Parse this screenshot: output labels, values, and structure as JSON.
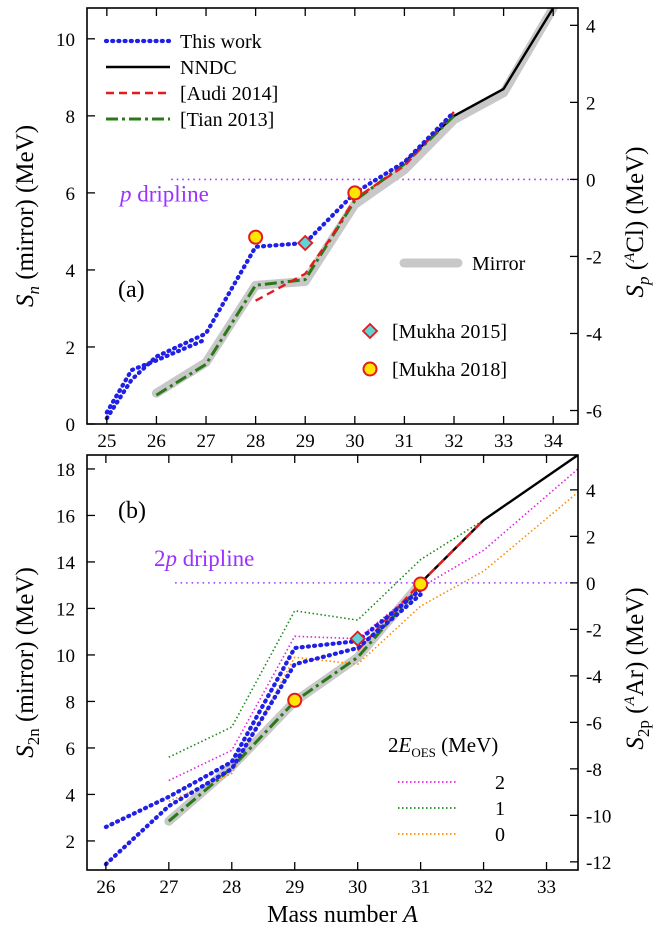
{
  "chart_data": [
    {
      "type": "line",
      "panel_label": "(a)",
      "xlabel": "",
      "ylabel": "S_n (mirror) (MeV)",
      "ylabel_right": "S_p (^A Cl) (MeV)",
      "xlim": [
        24.6,
        34.5
      ],
      "ylim": [
        0,
        10.8
      ],
      "ylim_right": [
        -6.35,
        4.45
      ],
      "x_ticks": [
        "25",
        "26",
        "27",
        "28",
        "29",
        "30",
        "31",
        "32",
        "33",
        "34"
      ],
      "y_ticks": [
        "0",
        "2",
        "4",
        "6",
        "8",
        "10"
      ],
      "y_ticks_right": [
        "-6",
        "-4",
        "-2",
        "0",
        "2",
        "4"
      ],
      "dripline": {
        "label": "p dripline",
        "y_right": 0,
        "x_start": 26.3,
        "color": "#9b30ff"
      },
      "legend": {
        "position": "top-left",
        "entries": [
          {
            "name": "This work",
            "color": "#1f1fe8",
            "style": "dotted"
          },
          {
            "name": "NNDC",
            "color": "#000000",
            "style": "solid"
          },
          {
            "name": "[Audi 2014]",
            "color": "#e41a1c",
            "style": "dashed"
          },
          {
            "name": "[Tian 2013]",
            "color": "#2a7a18",
            "style": "dashdot"
          }
        ]
      },
      "mirror_legend": {
        "name": "Mirror",
        "color": "#c8c8c8"
      },
      "marker_legend": [
        {
          "name": "[Mukha 2015]",
          "marker": "diamond"
        },
        {
          "name": "[Mukha 2018]",
          "marker": "circle"
        }
      ],
      "series": [
        {
          "name": "Mirror",
          "color": "#c8c8c8",
          "style": "band",
          "x": [
            26,
            27,
            28,
            29,
            30,
            31,
            32,
            33,
            34
          ],
          "y": [
            0.8,
            1.6,
            3.6,
            3.7,
            5.7,
            6.6,
            7.9,
            8.6,
            10.8
          ]
        },
        {
          "name": "NNDC",
          "color": "#000000",
          "style": "solid",
          "x": [
            31,
            32,
            33,
            34
          ],
          "y": [
            6.8,
            8.0,
            8.7,
            10.8
          ]
        },
        {
          "name": "[Tian 2013]",
          "color": "#2a7a18",
          "style": "dashdot",
          "x": [
            26,
            27,
            28,
            29,
            30,
            31,
            32
          ],
          "y": [
            0.75,
            1.55,
            3.6,
            3.75,
            5.8,
            6.75,
            8.0
          ]
        },
        {
          "name": "[Audi 2014]",
          "color": "#e41a1c",
          "style": "dashed",
          "x": [
            28,
            29,
            29.5,
            30,
            31,
            32
          ],
          "y": [
            3.2,
            3.9,
            4.8,
            5.85,
            6.7,
            8.1
          ]
        },
        {
          "name": "This work",
          "color": "#1f1fe8",
          "style": "dotted",
          "x": [
            25,
            25.5,
            26,
            27,
            28,
            29,
            30,
            31,
            32
          ],
          "y": [
            0.15,
            1.15,
            1.75,
            2.35,
            4.6,
            4.7,
            6.0,
            6.8,
            8.1
          ]
        },
        {
          "name": "This work",
          "color": "#1f1fe8",
          "style": "dotted",
          "x": [
            25,
            25.5,
            26,
            27
          ],
          "y": [
            0.3,
            1.4,
            1.65,
            2.2
          ]
        }
      ],
      "points": [
        {
          "name": "[Mukha 2015]",
          "marker": "diamond",
          "x": 29,
          "y": 4.7
        },
        {
          "name": "[Mukha 2018]",
          "marker": "circle",
          "x": 28,
          "y": 4.85
        },
        {
          "name": "[Mukha 2018]",
          "marker": "circle",
          "x": 30,
          "y": 6.0
        }
      ]
    },
    {
      "type": "line",
      "panel_label": "(b)",
      "xlabel": "Mass number A",
      "ylabel": "S_2n (mirror) (MeV)",
      "ylabel_right": "S_2p (^A Ar) (MeV)",
      "xlim": [
        25.7,
        33.5
      ],
      "ylim": [
        0.75,
        18.6
      ],
      "ylim_right": [
        -12.35,
        5.5
      ],
      "x_ticks": [
        "26",
        "27",
        "28",
        "29",
        "30",
        "31",
        "32",
        "33"
      ],
      "y_ticks": [
        "2",
        "4",
        "6",
        "8",
        "10",
        "12",
        "14",
        "16",
        "18"
      ],
      "y_ticks_right": [
        "-12",
        "-10",
        "-8",
        "-6",
        "-4",
        "-2",
        "0",
        "2",
        "4"
      ],
      "dripline": {
        "label": "2p dripline",
        "y_right": 0,
        "x_start": 27.1,
        "color": "#9b30ff"
      },
      "oes_legend": {
        "title": "2E_OES (MeV)",
        "entries": [
          {
            "name": "2",
            "color": "#e020e0"
          },
          {
            "name": "1",
            "color": "#1c8a1c"
          },
          {
            "name": "0",
            "color": "#ff8c00"
          }
        ]
      },
      "series": [
        {
          "name": "Mirror",
          "color": "#c8c8c8",
          "style": "band",
          "x": [
            27,
            28,
            29,
            30,
            31
          ],
          "y": [
            2.85,
            5.2,
            8.0,
            9.9,
            13.1
          ]
        },
        {
          "name": "2",
          "color": "#e020e0",
          "style": "dotted-thin",
          "x": [
            27,
            28,
            29,
            30,
            31,
            32,
            33.5
          ],
          "y": [
            4.6,
            5.9,
            10.8,
            10.7,
            12.9,
            14.5,
            18.0
          ]
        },
        {
          "name": "1",
          "color": "#1c8a1c",
          "style": "dotted-thin",
          "x": [
            27,
            28,
            29,
            30,
            31,
            32,
            33.5
          ],
          "y": [
            5.6,
            6.9,
            11.9,
            11.5,
            14.1,
            15.8,
            18.6
          ]
        },
        {
          "name": "0",
          "color": "#ff8c00",
          "style": "dotted-thin",
          "x": [
            27,
            28,
            29,
            30,
            31,
            32,
            33.5
          ],
          "y": [
            3.7,
            4.9,
            9.9,
            9.6,
            12.1,
            13.6,
            17.0
          ]
        },
        {
          "name": "NNDC",
          "color": "#000000",
          "style": "solid",
          "x": [
            31,
            32,
            33.5
          ],
          "y": [
            13.1,
            15.8,
            18.6
          ]
        },
        {
          "name": "[Tian 2013]",
          "color": "#2a7a18",
          "style": "dashdot",
          "x": [
            27,
            28,
            29,
            30,
            31
          ],
          "y": [
            2.85,
            5.15,
            8.0,
            9.9,
            13.0
          ]
        },
        {
          "name": "[Audi 2014]",
          "color": "#e41a1c",
          "style": "dashed",
          "x": [
            30,
            31,
            32
          ],
          "y": [
            10.2,
            13.1,
            15.8
          ]
        },
        {
          "name": "This work",
          "color": "#1f1fe8",
          "style": "dotted",
          "x": [
            26,
            27,
            28,
            29,
            30,
            31
          ],
          "y": [
            2.6,
            3.9,
            5.4,
            10.3,
            10.6,
            12.8
          ]
        },
        {
          "name": "This work",
          "color": "#1f1fe8",
          "style": "dotted",
          "x": [
            26,
            27,
            28,
            29,
            30,
            31
          ],
          "y": [
            1.0,
            3.5,
            5.1,
            9.6,
            10.3,
            12.6
          ]
        }
      ],
      "points": [
        {
          "name": "[Mukha 2015]",
          "marker": "diamond",
          "x": 30,
          "y": 10.7
        },
        {
          "name": "[Mukha 2018]",
          "marker": "circle",
          "x": 29,
          "y": 8.05
        },
        {
          "name": "[Mukha 2018]",
          "marker": "circle",
          "x": 31,
          "y": 13.05
        }
      ]
    }
  ]
}
